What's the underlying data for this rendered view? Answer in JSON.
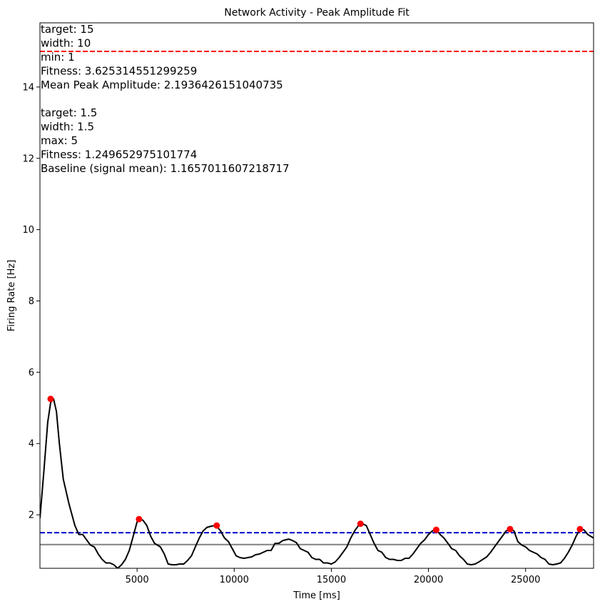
{
  "chart_data": {
    "type": "line",
    "title": "Network Activity - Peak Amplitude Fit",
    "xlabel": "Time [ms]",
    "ylabel": "Firing Rate [Hz]",
    "xlim": [
      0,
      28500
    ],
    "ylim": [
      0.5,
      15.8
    ],
    "xticks": [
      5000,
      10000,
      15000,
      20000,
      25000
    ],
    "yticks": [
      2,
      4,
      6,
      8,
      10,
      12,
      14
    ],
    "grid": false,
    "colors": {
      "signal": "#000000",
      "peaks": "#ff0000",
      "target_amplitude_line": "#ff0000",
      "target_baseline_line": "#0000cc",
      "baseline_mean_line": "#808080"
    },
    "series": [
      {
        "role": "signal",
        "x": [
          0,
          200,
          400,
          550,
          700,
          850,
          1000,
          1200,
          1500,
          1800,
          2000,
          2200,
          2400,
          2600,
          2800,
          3000,
          3200,
          3400,
          3600,
          3800,
          4000,
          4200,
          4400,
          4600,
          4800,
          5000,
          5100,
          5300,
          5500,
          5700,
          5900,
          6200,
          6400,
          6600,
          6800,
          7000,
          7200,
          7400,
          7600,
          7800,
          8000,
          8200,
          8400,
          8600,
          8800,
          9000,
          9100,
          9300,
          9500,
          9700,
          9900,
          10100,
          10300,
          10500,
          10700,
          10900,
          11100,
          11300,
          11500,
          11700,
          11900,
          12100,
          12300,
          12500,
          12800,
          13000,
          13200,
          13400,
          13600,
          13800,
          14000,
          14200,
          14400,
          14600,
          14800,
          15000,
          15200,
          15400,
          15600,
          15800,
          16000,
          16200,
          16400,
          16600,
          16800,
          17000,
          17200,
          17400,
          17600,
          17800,
          18000,
          18200,
          18400,
          18600,
          18800,
          19000,
          19200,
          19400,
          19600,
          19800,
          20000,
          20200,
          20400,
          20600,
          20800,
          21000,
          21200,
          21400,
          21600,
          21800,
          22000,
          22200,
          22400,
          22600,
          22800,
          23000,
          23200,
          23400,
          23600,
          23800,
          24000,
          24200,
          24400,
          24600,
          24800,
          25000,
          25200,
          25400,
          25600,
          25800,
          26000,
          26200,
          26400,
          26600,
          26800,
          27000,
          27200,
          27400,
          27600,
          27800,
          28000,
          28200,
          28500
        ],
        "y": [
          1.9,
          3.2,
          4.6,
          5.15,
          5.25,
          4.9,
          4.0,
          3.0,
          2.3,
          1.7,
          1.45,
          1.45,
          1.3,
          1.15,
          1.1,
          0.9,
          0.75,
          0.65,
          0.65,
          0.6,
          0.5,
          0.6,
          0.75,
          1.0,
          1.4,
          1.8,
          1.88,
          1.85,
          1.7,
          1.4,
          1.2,
          1.1,
          0.9,
          0.62,
          0.6,
          0.6,
          0.62,
          0.62,
          0.72,
          0.85,
          1.1,
          1.35,
          1.55,
          1.65,
          1.68,
          1.7,
          1.68,
          1.55,
          1.35,
          1.25,
          1.05,
          0.85,
          0.8,
          0.78,
          0.8,
          0.82,
          0.88,
          0.9,
          0.95,
          1.0,
          1.0,
          1.2,
          1.2,
          1.28,
          1.32,
          1.28,
          1.22,
          1.05,
          1.0,
          0.95,
          0.8,
          0.75,
          0.75,
          0.65,
          0.65,
          0.62,
          0.68,
          0.8,
          0.95,
          1.1,
          1.35,
          1.55,
          1.7,
          1.75,
          1.7,
          1.45,
          1.2,
          1.0,
          0.95,
          0.8,
          0.75,
          0.75,
          0.72,
          0.72,
          0.78,
          0.78,
          0.9,
          1.05,
          1.2,
          1.3,
          1.45,
          1.55,
          1.58,
          1.45,
          1.35,
          1.2,
          1.05,
          1.0,
          0.85,
          0.75,
          0.62,
          0.6,
          0.62,
          0.68,
          0.75,
          0.82,
          0.95,
          1.1,
          1.25,
          1.4,
          1.55,
          1.6,
          1.55,
          1.25,
          1.15,
          1.1,
          1.0,
          0.95,
          0.9,
          0.8,
          0.75,
          0.62,
          0.6,
          0.62,
          0.65,
          0.78,
          0.95,
          1.15,
          1.4,
          1.6,
          1.58,
          1.45,
          1.35
        ]
      },
      {
        "role": "peaks",
        "x": [
          550,
          5100,
          9100,
          16500,
          20400,
          24200,
          27800
        ],
        "y": [
          5.25,
          1.88,
          1.7,
          1.75,
          1.58,
          1.6,
          1.6
        ]
      }
    ],
    "reference_lines": [
      {
        "role": "target_amplitude_line",
        "y": 15,
        "style": "dashed"
      },
      {
        "role": "target_baseline_line",
        "y": 1.5,
        "style": "dashed"
      },
      {
        "role": "baseline_mean_line",
        "y": 1.1657011607218717,
        "style": "solid"
      }
    ],
    "annotations": [
      "target: 15",
      "width: 10",
      "min: 1",
      "Fitness: 3.625314551299259",
      "Mean Peak Amplitude: 2.1936426151040735",
      "",
      "target: 1.5",
      "width: 1.5",
      "max: 5",
      "Fitness: 1.249652975101774",
      "Baseline (signal mean): 1.1657011607218717"
    ]
  }
}
